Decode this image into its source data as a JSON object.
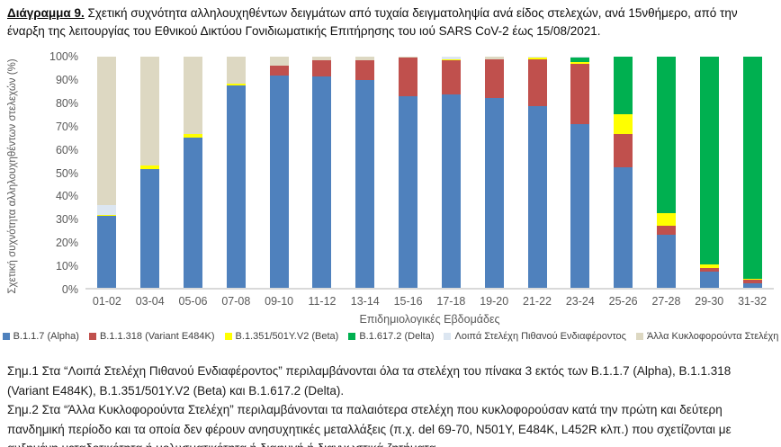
{
  "caption": {
    "prefix": "Διάγραμμα 9.",
    "text": " Σχετική συχνότητα αλληλουχηθέντων δειγμάτων από τυχαία δειγματοληψία ανά είδος στελεχών, ανά 15νθήμερο, από την έναρξη της λειτουργίας του Εθνικού Δικτύου Γονιδιωματικής Επιτήρησης του ιού SARS CoV-2 έως 15/08/2021."
  },
  "chart_data": {
    "type": "bar",
    "stacked": true,
    "title": "",
    "xlabel": "Επιδημιολογικές Εβδομάδες",
    "ylabel": "Σχετική συχνότητα αλληλουχηθέντων στελεχών (%)",
    "ylim": [
      0,
      100
    ],
    "grid": false,
    "legend_position": "bottom",
    "ytick_labels_top_to_bottom": [
      "100%",
      "90%",
      "80%",
      "70%",
      "60%",
      "50%",
      "40%",
      "30%",
      "20%",
      "10%",
      "0%"
    ],
    "categories": [
      "01-02",
      "03-04",
      "05-06",
      "07-08",
      "09-10",
      "11-12",
      "13-14",
      "15-16",
      "17-18",
      "19-20",
      "21-22",
      "23-24",
      "25-26",
      "27-28",
      "29-30",
      "31-32"
    ],
    "series": [
      {
        "name": "B.1.1.7 (Alpha)",
        "color": "#4F81BD",
        "values": [
          31,
          51.5,
          65,
          87.5,
          92,
          91.5,
          90,
          83,
          83.5,
          82,
          78.5,
          71,
          52,
          23,
          7,
          2
        ]
      },
      {
        "name": "B.1.1.318 (Variant E484K)",
        "color": "#C0504D",
        "values": [
          0,
          0,
          0,
          0,
          4,
          7,
          8.5,
          16.5,
          15,
          17,
          20.5,
          26,
          14.5,
          4,
          1.5,
          1.5
        ]
      },
      {
        "name": "B.1.351/501Y.V2 (Beta)",
        "color": "#FFFF00",
        "values": [
          0.5,
          1.5,
          1.5,
          1,
          0,
          0,
          0,
          0,
          0.5,
          0,
          0.5,
          0.5,
          8.5,
          5.5,
          1.5,
          0.5
        ]
      },
      {
        "name": "B.1.617.2 (Delta)",
        "color": "#00B050",
        "values": [
          0,
          0,
          0,
          0,
          0,
          0,
          0,
          0,
          0,
          0,
          0,
          2,
          25,
          67.5,
          90,
          96
        ]
      },
      {
        "name": "Λοιπά Στελέχη Πιθανού Ενδιαφέροντος",
        "color": "#DCE6F1",
        "values": [
          4.5,
          0,
          0,
          0,
          0,
          0,
          0,
          0,
          1,
          0,
          0.5,
          0.5,
          0,
          0,
          0,
          0
        ]
      },
      {
        "name": "Άλλα Κυκλοφορούντα Στελέχη",
        "color": "#DDD8C2",
        "values": [
          64,
          47,
          33.5,
          11.5,
          4,
          1.5,
          1.5,
          0.5,
          0,
          1,
          0,
          0,
          0,
          0,
          0,
          0
        ]
      }
    ]
  },
  "notes": {
    "note1": "Σημ.1 Στα “Λοιπά Στελέχη Πιθανού Ενδιαφέροντος” περιλαμβάνονται όλα τα στελέχη του πίνακα 3 εκτός των B.1.1.7 (Alpha), B.1.1.318 (Variant E484K), B.1.351/501Y.V2 (Beta) και B.1.617.2 (Delta).",
    "note2": "Σημ.2 Στα “Άλλα Κυκλοφορούντα Στελέχη” περιλαμβάνονται τα παλαιότερα στελέχη που κυκλοφορούσαν κατά την πρώτη και δεύτερη πανδημική περίοδο και τα οποία δεν φέρουν ανησυχητικές μεταλλάξεις (π.χ. del 69-70, N501Y, E484K, L452R κλπ.) που σχετίζονται με αυξημένη μεταδοτικότητα ή μολυσματικότητα ή διαφυγή ή διαγνωστικά ζητήματα."
  }
}
